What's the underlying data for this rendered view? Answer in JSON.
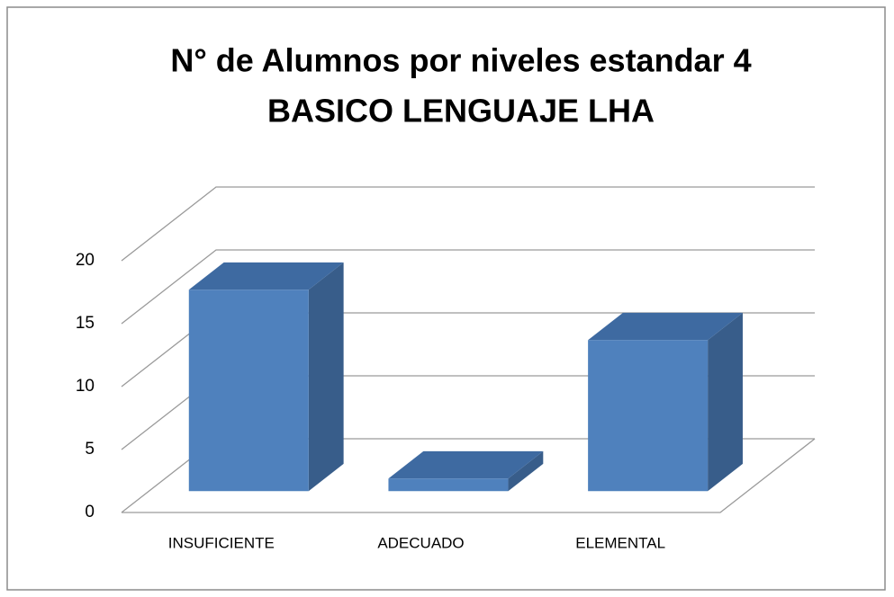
{
  "chart_data": {
    "type": "bar3d",
    "title": [
      "N° de Alumnos por niveles estandar  4",
      "BASICO LENGUAJE LHA"
    ],
    "categories": [
      "INSUFICIENTE",
      "ADECUADO",
      "ELEMENTAL"
    ],
    "values": [
      16,
      1,
      12
    ],
    "color": "#4f81bd",
    "ylim": [
      0,
      20
    ],
    "yticks": [
      0,
      5,
      10,
      15,
      20
    ],
    "grid": true
  }
}
